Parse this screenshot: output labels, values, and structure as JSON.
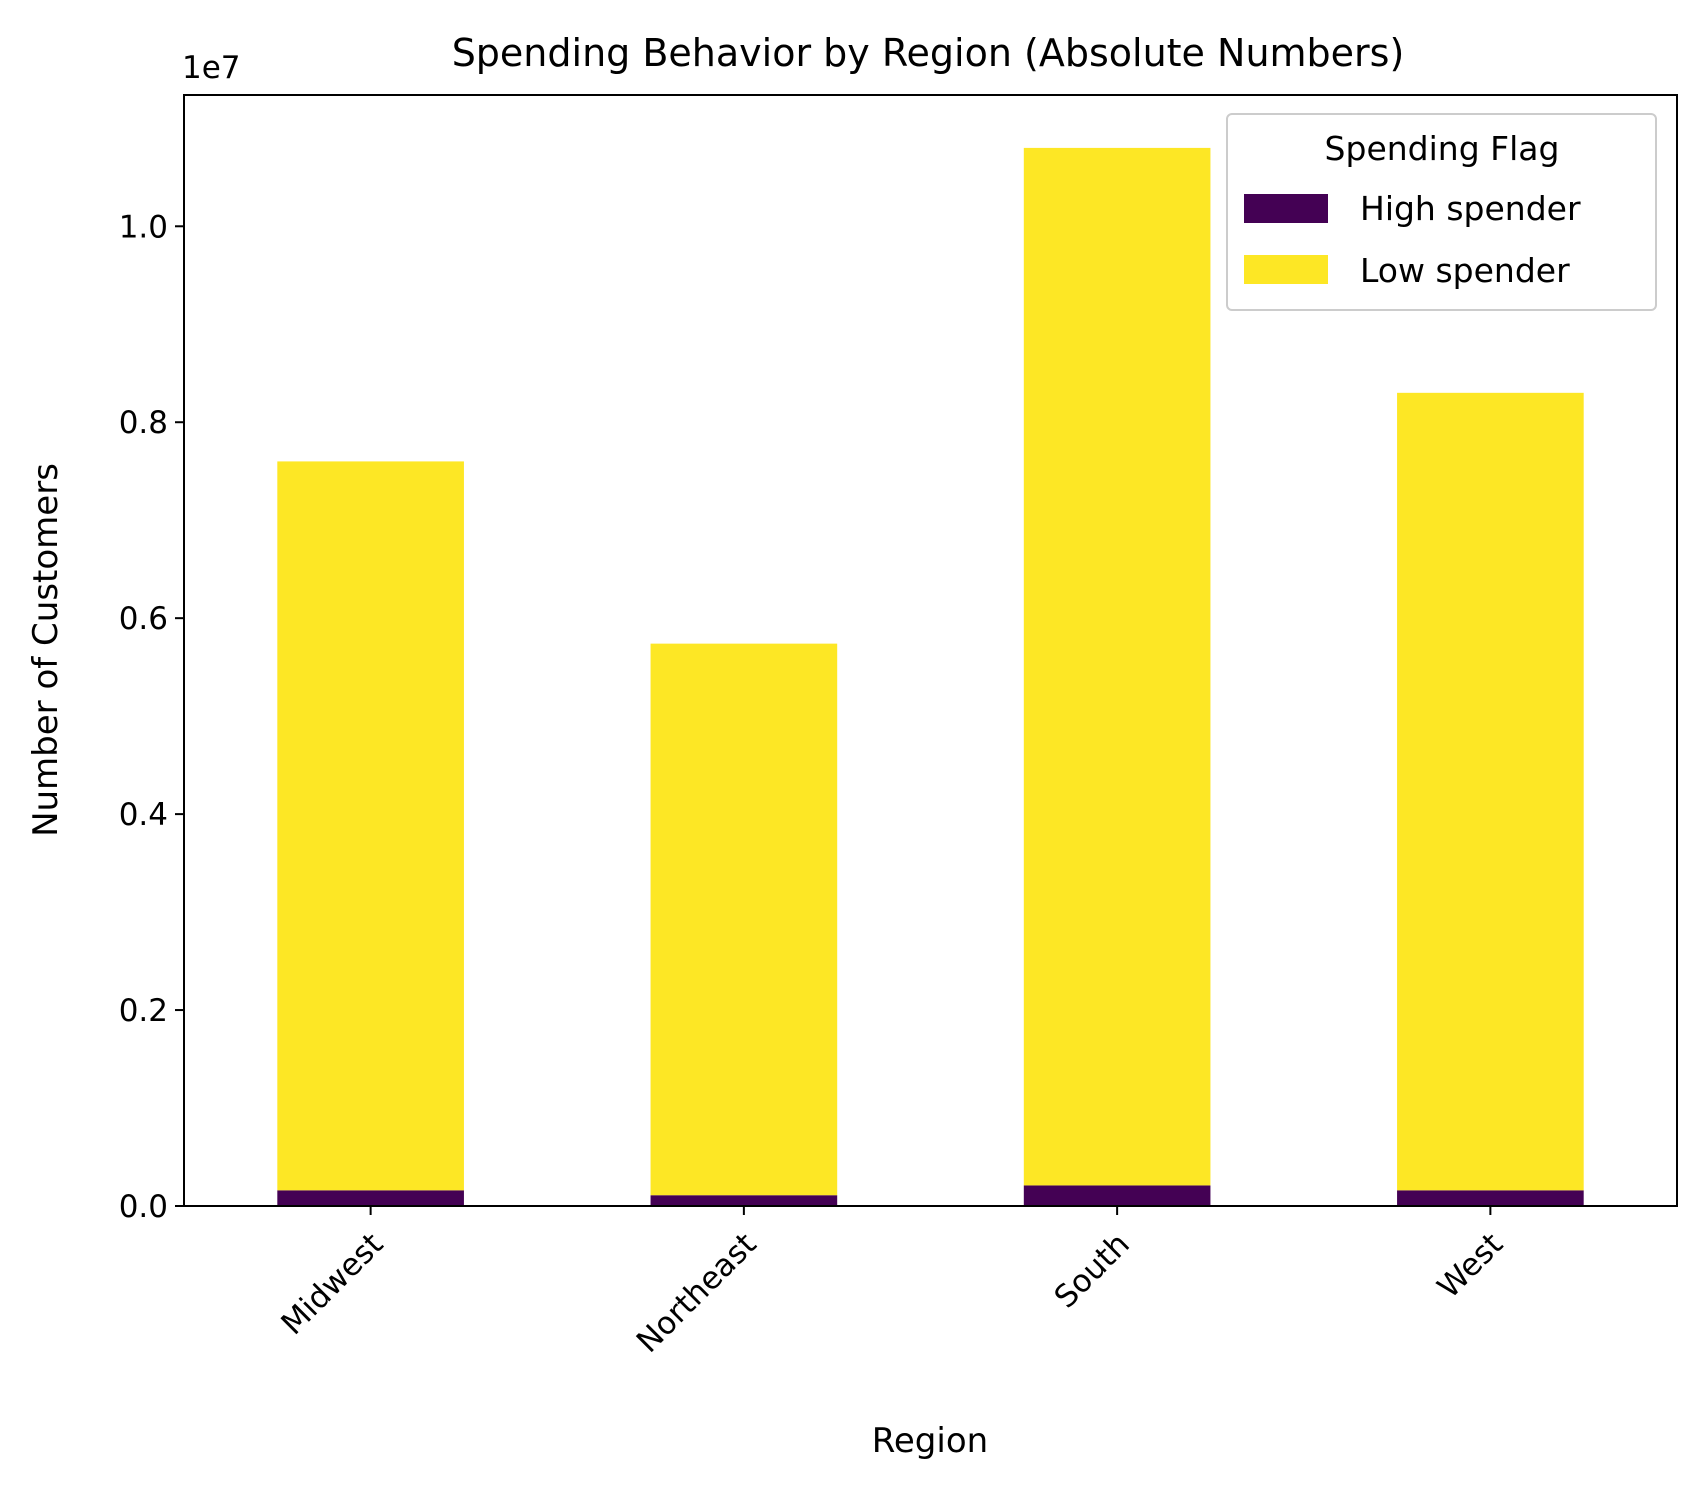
{
  "chart_data": {
    "type": "bar",
    "stacked": true,
    "title": "Spending Behavior by Region (Absolute Numbers)",
    "xlabel": "Region",
    "ylabel": "Number of Customers",
    "y_offset_label": "1e7",
    "y_tick_values": [
      0.0,
      0.2,
      0.4,
      0.6,
      0.8,
      1.0
    ],
    "y_tick_labels": [
      "0.0",
      "0.2",
      "0.4",
      "0.6",
      "0.8",
      "1.0"
    ],
    "ylim": [
      0,
      1.134
    ],
    "categories": [
      "Midwest",
      "Northeast",
      "South",
      "West"
    ],
    "series": [
      {
        "name": "High spender",
        "color": "#440154",
        "values": [
          0.016,
          0.011,
          0.021,
          0.016
        ]
      },
      {
        "name": "Low spender",
        "color": "#fde725",
        "values": [
          0.744,
          0.563,
          1.059,
          0.814
        ]
      }
    ],
    "legend": {
      "title": "Spending Flag",
      "placement": "upper right"
    },
    "grid": false
  }
}
